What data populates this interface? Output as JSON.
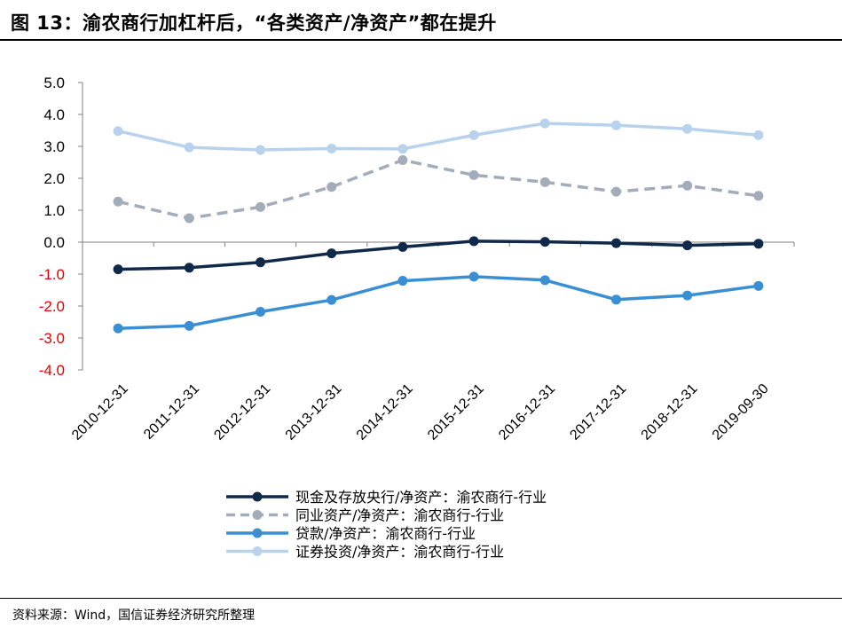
{
  "header": {
    "title": "图 13：渝农商行加杠杆后，“各类资产/净资产”都在提升"
  },
  "footer": {
    "source": "资料来源：Wind，国信证券经济研究所整理"
  },
  "colors": {
    "series_cash": "#10284a",
    "series_interbank": "#a3acb9",
    "series_loans": "#3a8fd3",
    "series_securities": "#b8d2ee",
    "axis": "#808080",
    "negative_tick": "#e60000"
  },
  "chart_data": {
    "type": "line",
    "title": "",
    "xlabel": "",
    "ylabel": "",
    "ylim": [
      -4.0,
      5.0
    ],
    "yticks": [
      "5.0",
      "4.0",
      "3.0",
      "2.0",
      "1.0",
      "0.0",
      "-1.0",
      "-2.0",
      "-3.0",
      "-4.0"
    ],
    "ytick_values": [
      5,
      4,
      3,
      2,
      1,
      0,
      -1,
      -2,
      -3,
      -4
    ],
    "negative_ticks_red": true,
    "grid": false,
    "legend_position": "bottom-center",
    "categories": [
      "2010-12-31",
      "2011-12-31",
      "2012-12-31",
      "2013-12-31",
      "2014-12-31",
      "2015-12-31",
      "2016-12-31",
      "2017-12-31",
      "2018-12-31",
      "2019-09-30"
    ],
    "series": [
      {
        "name": "现金及存放央行/净资产：渝农商行-行业",
        "style": "solid",
        "values": [
          -0.85,
          -0.8,
          -0.63,
          -0.35,
          -0.15,
          0.03,
          0.01,
          -0.03,
          -0.1,
          -0.05
        ]
      },
      {
        "name": "同业资产/净资产：渝农商行-行业",
        "style": "dashed",
        "values": [
          1.27,
          0.75,
          1.1,
          1.73,
          2.57,
          2.1,
          1.88,
          1.58,
          1.77,
          1.45
        ]
      },
      {
        "name": "贷款/净资产：渝农商行-行业",
        "style": "solid",
        "values": [
          -2.7,
          -2.62,
          -2.18,
          -1.81,
          -1.21,
          -1.08,
          -1.19,
          -1.8,
          -1.67,
          -1.37
        ]
      },
      {
        "name": "证券投资/净资产：渝农商行-行业",
        "style": "solid",
        "values": [
          3.48,
          2.97,
          2.89,
          2.93,
          2.92,
          3.35,
          3.72,
          3.66,
          3.55,
          3.35
        ]
      }
    ]
  }
}
